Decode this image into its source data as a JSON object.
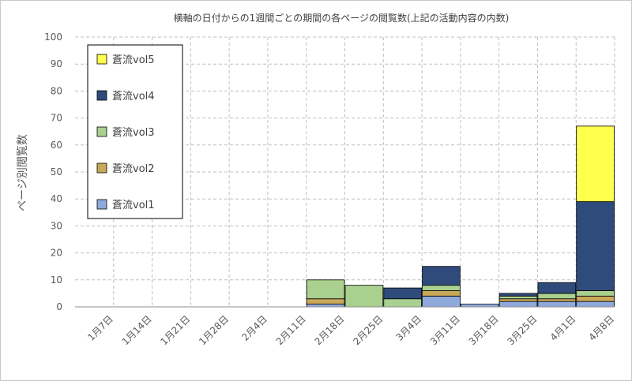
{
  "chart_data": {
    "type": "bar",
    "stacked": true,
    "title": "横軸の日付からの1週間ごとの期間の各ページの閲覧数(上記の活動内容の内数)",
    "ylabel": "ページ別閲覧数",
    "xlabel": "",
    "ylim": [
      0,
      100
    ],
    "yticks": [
      0,
      10,
      20,
      30,
      40,
      50,
      60,
      70,
      80,
      90,
      100
    ],
    "grid": "dashed",
    "legend_position": "top-left",
    "categories": [
      "1月7日",
      "1月14日",
      "1月21日",
      "1月28日",
      "2月4日",
      "2月11日",
      "2月18日",
      "2月25日",
      "3月4日",
      "3月11日",
      "3月18日",
      "3月25日",
      "4月1日",
      "4月8日"
    ],
    "series": [
      {
        "name": "蒼流vol1",
        "color": "#8ea9db",
        "values": [
          0,
          0,
          0,
          0,
          0,
          0,
          1,
          0,
          0,
          4,
          1,
          2,
          2,
          2
        ]
      },
      {
        "name": "蒼流vol2",
        "color": "#c9a85a",
        "values": [
          0,
          0,
          0,
          0,
          0,
          0,
          2,
          0,
          0,
          2,
          0,
          1,
          1,
          2
        ]
      },
      {
        "name": "蒼流vol3",
        "color": "#a9d08e",
        "values": [
          0,
          0,
          0,
          0,
          0,
          0,
          7,
          8,
          3,
          2,
          0,
          1,
          2,
          2
        ]
      },
      {
        "name": "蒼流vol4",
        "color": "#2f4b7c",
        "values": [
          0,
          0,
          0,
          0,
          0,
          0,
          0,
          0,
          4,
          7,
          0,
          1,
          4,
          33
        ]
      },
      {
        "name": "蒼流vol5",
        "color": "#ffff4d",
        "values": [
          0,
          0,
          0,
          0,
          0,
          0,
          0,
          0,
          0,
          0,
          0,
          0,
          0,
          28
        ]
      }
    ]
  }
}
